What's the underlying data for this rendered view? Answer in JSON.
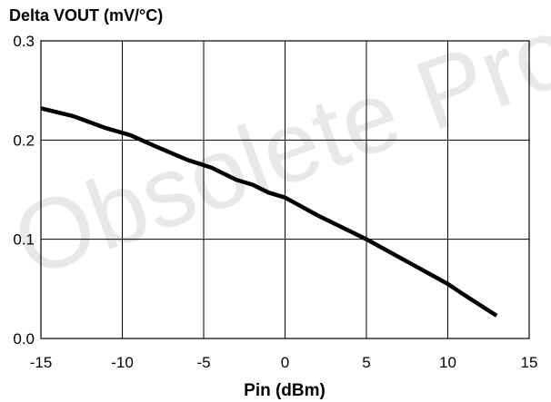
{
  "watermark": "Obsolete Product",
  "chart_data": {
    "type": "line",
    "ylabel": "Delta VOUT (mV/°C)",
    "xlabel": "Pin (dBm)",
    "xlim": [
      -15,
      15
    ],
    "ylim": [
      0.0,
      0.3
    ],
    "x_ticks": [
      "-15",
      "-10",
      "-5",
      "0",
      "5",
      "10",
      "15"
    ],
    "y_ticks": [
      "0.0",
      "0.1",
      "0.2",
      "0.3"
    ],
    "grid": true,
    "series": [
      {
        "x": [
          -15,
          -13,
          -11,
          -9.5,
          -8,
          -6,
          -4.5,
          -3,
          -2,
          -1,
          0,
          2,
          4,
          5,
          6,
          8,
          10,
          11,
          13
        ],
        "y": [
          0.232,
          0.224,
          0.212,
          0.205,
          0.194,
          0.18,
          0.172,
          0.16,
          0.155,
          0.147,
          0.142,
          0.124,
          0.108,
          0.1,
          0.091,
          0.073,
          0.055,
          0.044,
          0.023
        ]
      }
    ]
  }
}
